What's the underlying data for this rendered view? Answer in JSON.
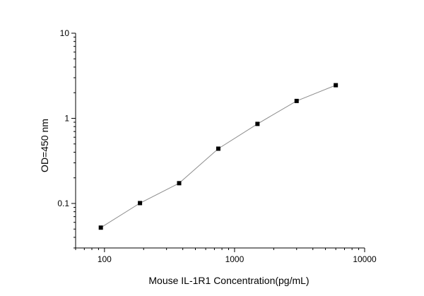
{
  "chart_data": {
    "type": "scatter",
    "title": "",
    "xlabel": "Mouse IL-1R1 Concentration(pg/mL)",
    "ylabel": "OD=450 nm",
    "x_scale": "log",
    "y_scale": "log",
    "xlim": [
      60,
      10000
    ],
    "ylim": [
      0.03,
      10
    ],
    "x_ticks": [
      {
        "value": 100,
        "label": "100"
      },
      {
        "value": 1000,
        "label": "1000"
      },
      {
        "value": 10000,
        "label": "10000"
      }
    ],
    "y_ticks": [
      {
        "value": 0.1,
        "label": "0.1"
      },
      {
        "value": 1,
        "label": "1"
      },
      {
        "value": 10,
        "label": "10"
      }
    ],
    "grid": false,
    "series": [
      {
        "x": [
          93.75,
          187.5,
          375,
          750,
          1500,
          3000,
          6000
        ],
        "y": [
          0.052,
          0.101,
          0.173,
          0.44,
          0.86,
          1.6,
          2.45
        ],
        "connected": true,
        "marker": "square",
        "color": "#000000",
        "line_color": "#8c8c8c"
      }
    ]
  }
}
